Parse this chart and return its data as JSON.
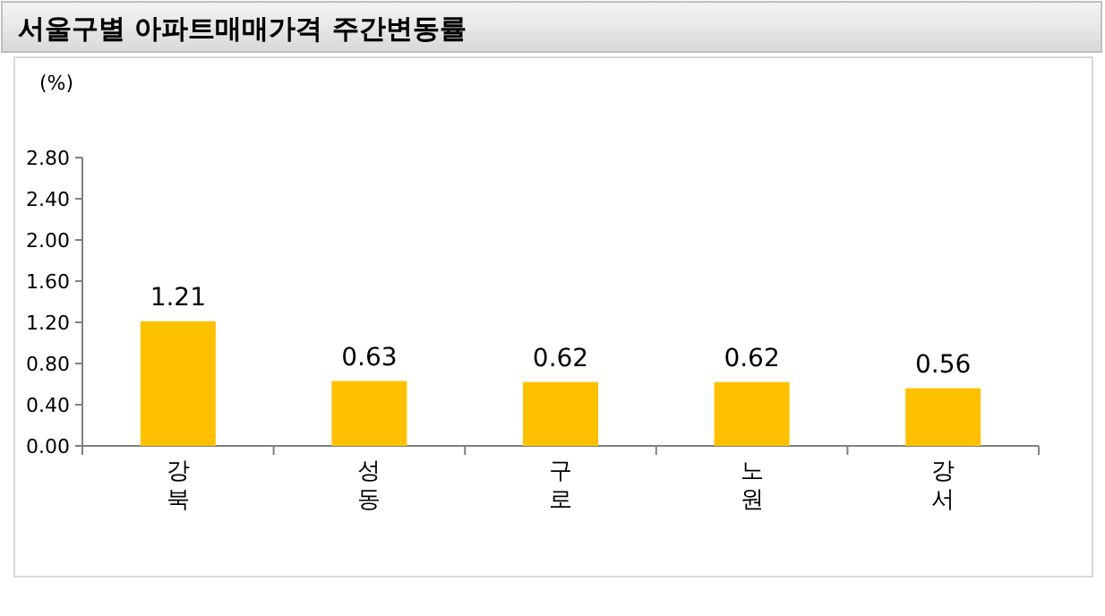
{
  "chart_data": {
    "type": "bar",
    "title": "서울구별 아파트매매가격 주간변동률",
    "ylabel": "(%)",
    "categories": [
      "강북",
      "성동",
      "구로",
      "노원",
      "강서"
    ],
    "values": [
      1.21,
      0.63,
      0.62,
      0.62,
      0.56
    ],
    "color": "#ffc000",
    "ylim": [
      0,
      2.8
    ],
    "yticks": [
      {
        "value": 0,
        "label": "0.00"
      },
      {
        "value": 0.4,
        "label": "0.40"
      },
      {
        "value": 0.8,
        "label": "0.80"
      },
      {
        "value": 1.2,
        "label": "1.20"
      },
      {
        "value": 1.6,
        "label": "1.60"
      },
      {
        "value": 2.0,
        "label": "2.00"
      },
      {
        "value": 2.4,
        "label": "2.40"
      },
      {
        "value": 2.8,
        "label": "2.80"
      }
    ],
    "data_labels": true,
    "grid": false
  }
}
